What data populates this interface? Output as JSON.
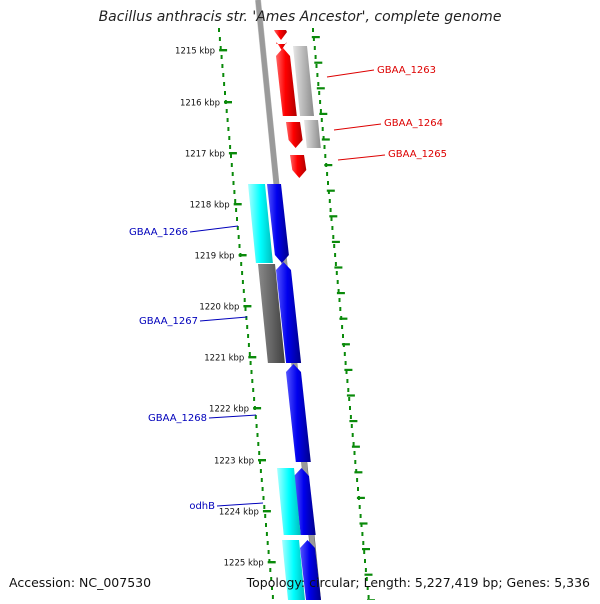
{
  "title": "Bacillus anthracis str. 'Ames Ancestor', complete genome",
  "footer": {
    "accession": "Accession: NC_007530",
    "summary": "Topology: circular; Length: 5,227,419 bp; Genes: 5,336"
  },
  "scale_labels": [
    "1215 kbp",
    "1216 kbp",
    "1217 kbp",
    "1218 kbp",
    "1219 kbp",
    "1220 kbp",
    "1221 kbp",
    "1222 kbp",
    "1223 kbp",
    "1224 kbp",
    "1225 kbp"
  ],
  "gene_labels": [
    {
      "text": "GBAA_1263",
      "color": "#dd0000",
      "icon": "red-gene-label"
    },
    {
      "text": "GBAA_1264",
      "color": "#dd0000",
      "icon": "red-gene-label"
    },
    {
      "text": "GBAA_1265",
      "color": "#dd0000",
      "icon": "red-gene-label"
    },
    {
      "text": "GBAA_1266",
      "color": "#0000bb",
      "icon": "blue-gene-label"
    },
    {
      "text": "GBAA_1267",
      "color": "#0000bb",
      "icon": "blue-gene-label"
    },
    {
      "text": "GBAA_1268",
      "color": "#0000bb",
      "icon": "blue-gene-label"
    },
    {
      "text": "odhB",
      "color": "#0000bb",
      "icon": "blue-gene-label"
    }
  ],
  "colors": {
    "forward_cds": "#ff0000",
    "reverse_cds": "#0000ee",
    "rna": "#00ffff",
    "grey_feature": "#b0b0b0",
    "dark_feature": "#666666",
    "tick": "#0a8a0a",
    "backbone": "#888888"
  }
}
